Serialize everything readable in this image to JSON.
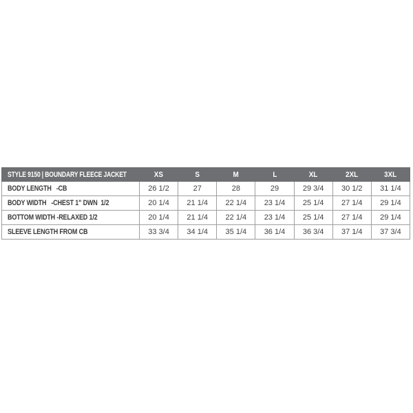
{
  "chart_data": {
    "type": "table",
    "title": "STYLE 9150 | BOUNDARY FLEECE JACKET",
    "columns": [
      "XS",
      "S",
      "M",
      "L",
      "XL",
      "2XL",
      "3XL"
    ],
    "rows": [
      {
        "label": "BODY LENGTH   -CB",
        "values": [
          "26 1/2",
          "27",
          "28",
          "29",
          "29 3/4",
          "30 1/2",
          "31 1/4"
        ]
      },
      {
        "label": "BODY WIDTH   -CHEST 1\" DWN  1/2",
        "values": [
          "20 1/4",
          "21 1/4",
          "22 1/4",
          "23 1/4",
          "25 1/4",
          "27 1/4",
          "29 1/4"
        ]
      },
      {
        "label": "BOTTOM WIDTH -RELAXED 1/2",
        "values": [
          "20 1/4",
          "21 1/4",
          "22 1/4",
          "23 1/4",
          "25 1/4",
          "27 1/4",
          "29 1/4"
        ]
      },
      {
        "label": "SLEEVE LENGTH FROM CB",
        "values": [
          "33 3/4",
          "34 1/4",
          "35 1/4",
          "36 1/4",
          "36 3/4",
          "37 1/4",
          "37 3/4"
        ]
      }
    ],
    "layout": {
      "legend": "none",
      "grid": "on",
      "header_position": "top"
    },
    "colors": {
      "header_bg": "#6e6f72",
      "header_text": "#ffffff",
      "cell_border": "#9d9ea1",
      "cell_text": "#414144",
      "row_bg": "#ffffff",
      "page_bg": "#ffffff"
    }
  }
}
